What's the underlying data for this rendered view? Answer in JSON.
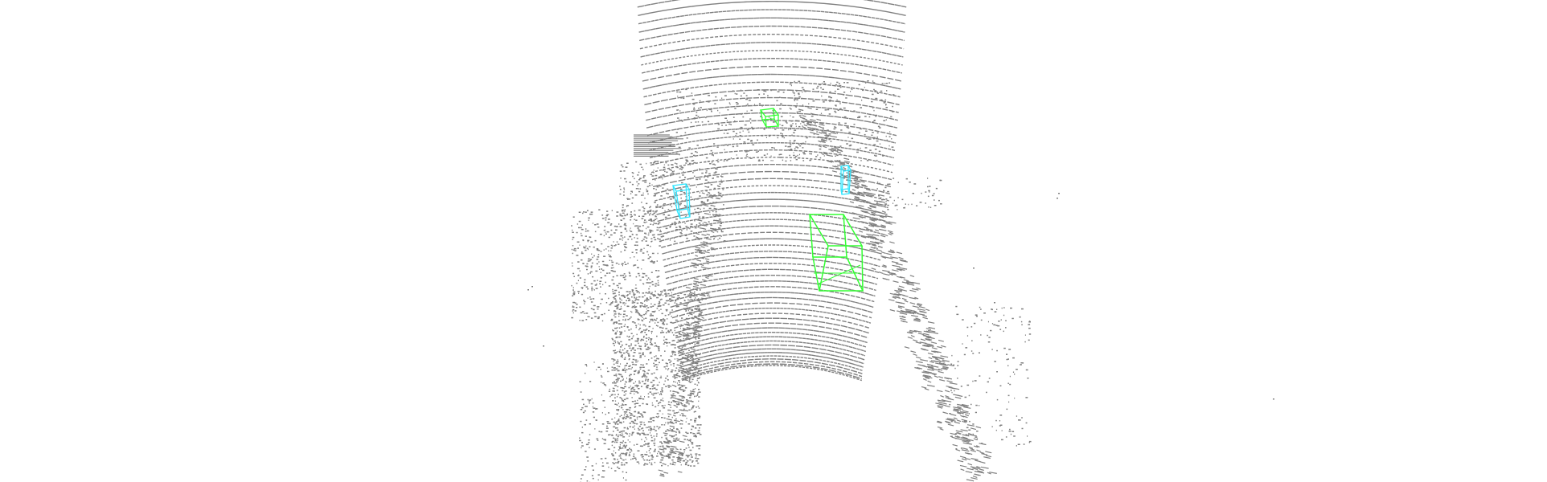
{
  "scene": {
    "type": "lidar-point-cloud-3d-detection-view",
    "background_color": "#ffffff",
    "point_color": "#808080",
    "detections": [
      {
        "label": "car",
        "color": "#33ff33"
      },
      {
        "label": "car",
        "color": "#33ff33"
      },
      {
        "label": "pedestrian",
        "color": "#33e6ff"
      },
      {
        "label": "pedestrian",
        "color": "#33e6ff"
      }
    ]
  }
}
